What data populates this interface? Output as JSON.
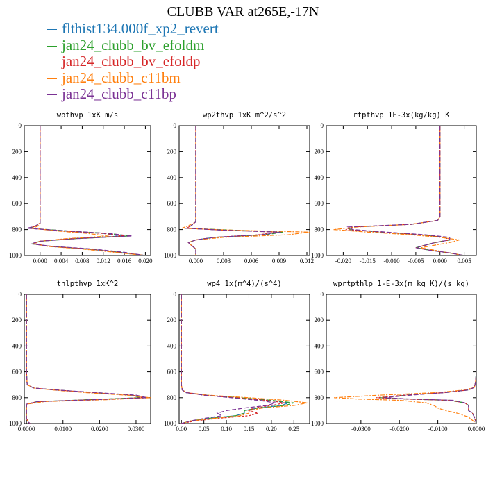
{
  "figure": {
    "title": "CLUBB VAR at265E,-17N"
  },
  "legend": [
    {
      "name": "flthist134.000f_xp2_revert",
      "color": "#1f77b4"
    },
    {
      "name": "jan24_clubb_bv_efoldm",
      "color": "#2ca02c"
    },
    {
      "name": "jan24_clubb_bv_efoldp",
      "color": "#d62728"
    },
    {
      "name": "jan24_clubb_c11bm",
      "color": "#ff7f0e"
    },
    {
      "name": "jan24_clubb_c11bp",
      "color": "#7b3294"
    }
  ],
  "chart_data": [
    {
      "type": "line",
      "title": "wpthvp  1xK m/s",
      "ylim": [
        1000,
        0
      ],
      "yticks": [
        "0",
        "200",
        "400",
        "600",
        "800",
        "1000"
      ],
      "xlim": [
        -0.003,
        0.021
      ],
      "xticks": [
        "0.000",
        "0.004",
        "0.008",
        "0.012",
        "0.016",
        "0.020"
      ],
      "y": [
        0,
        200,
        400,
        600,
        700,
        750,
        775,
        790,
        810,
        830,
        850,
        870,
        890,
        910,
        930,
        950,
        975,
        1000
      ],
      "series": [
        {
          "values": [
            0.0,
            0.0,
            0.0,
            0.0,
            0.0,
            0.0,
            -0.001,
            -0.002,
            0.004,
            0.012,
            0.0155,
            0.006,
            0.0,
            -0.0015,
            0.002,
            0.009,
            0.015,
            0.02
          ]
        },
        {
          "values": [
            0.0,
            0.0,
            0.0,
            0.0,
            0.0,
            0.0,
            -0.001,
            -0.002,
            0.005,
            0.013,
            0.017,
            0.007,
            0.0,
            -0.0015,
            0.002,
            0.009,
            0.015,
            0.02
          ]
        },
        {
          "values": [
            0.0,
            0.0,
            0.0,
            0.0,
            0.0,
            0.0,
            -0.001,
            -0.002,
            0.004,
            0.012,
            0.016,
            0.006,
            0.0,
            -0.0012,
            0.002,
            0.009,
            0.015,
            0.02
          ]
        },
        {
          "values": [
            0.0,
            0.0,
            0.0,
            0.0,
            0.0,
            0.0,
            -0.0005,
            -0.0015,
            0.003,
            0.009,
            0.013,
            0.005,
            0.0,
            -0.0012,
            0.0015,
            0.008,
            0.014,
            0.02
          ]
        },
        {
          "values": [
            0.0,
            0.0,
            0.0,
            0.0,
            0.0,
            0.0,
            -0.001,
            -0.0025,
            0.005,
            0.013,
            0.0175,
            0.007,
            0.0,
            -0.0018,
            0.0025,
            0.01,
            0.016,
            0.02
          ]
        }
      ]
    },
    {
      "type": "line",
      "title": "wp2thvp  1xK m^2/s^2",
      "ylim": [
        1000,
        0
      ],
      "yticks": [
        "0",
        "200",
        "400",
        "600",
        "800",
        "1000"
      ],
      "xlim": [
        -0.0018,
        0.0123
      ],
      "xticks": [
        "0.000",
        "0.003",
        "0.006",
        "0.009",
        "0.012"
      ],
      "y": [
        0,
        200,
        400,
        600,
        700,
        740,
        770,
        790,
        805,
        820,
        840,
        860,
        880,
        900,
        920,
        950,
        975,
        1000
      ],
      "series": [
        {
          "values": [
            0.0,
            0.0,
            0.0,
            0.0,
            0.0,
            0.0,
            -0.0005,
            -0.001,
            0.003,
            0.009,
            0.007,
            0.002,
            0.0,
            -0.0008,
            -0.0005,
            0.0,
            0.0,
            0.0
          ]
        },
        {
          "values": [
            0.0,
            0.0,
            0.0,
            0.0,
            0.0,
            0.0,
            -0.0005,
            -0.001,
            0.004,
            0.0095,
            0.0075,
            0.002,
            0.0,
            -0.0008,
            -0.0005,
            0.0,
            0.0,
            0.0
          ]
        },
        {
          "values": [
            0.0,
            0.0,
            0.0,
            0.0,
            0.0,
            0.0,
            -0.0005,
            -0.001,
            0.003,
            0.0088,
            0.0068,
            0.002,
            0.0,
            -0.0008,
            -0.0005,
            0.0,
            0.0,
            0.0
          ]
        },
        {
          "values": [
            0.0,
            0.0,
            0.0,
            0.0,
            0.0,
            0.0,
            -0.0008,
            -0.0015,
            0.004,
            0.0123,
            0.01,
            0.003,
            0.0,
            -0.0008,
            -0.0005,
            0.0,
            0.0,
            0.0
          ]
        },
        {
          "values": [
            0.0,
            0.0,
            0.0,
            0.0,
            0.0,
            0.0,
            -0.0005,
            -0.001,
            0.003,
            0.0092,
            0.0072,
            0.002,
            0.0,
            -0.0008,
            -0.0005,
            0.0,
            0.0,
            0.0
          ]
        }
      ]
    },
    {
      "type": "line",
      "title": "rtpthvp  1E-3x(kg/kg) K",
      "ylim": [
        1000,
        0
      ],
      "yticks": [
        "0",
        "200",
        "400",
        "600",
        "800",
        "1000"
      ],
      "xlim": [
        -0.0235,
        0.0075
      ],
      "xticks": [
        "-0.020",
        "-0.015",
        "-0.010",
        "-0.005",
        "0.000",
        "0.005"
      ],
      "y": [
        0,
        200,
        400,
        600,
        700,
        730,
        760,
        780,
        800,
        820,
        840,
        860,
        880,
        900,
        920,
        940,
        960,
        980,
        1000
      ],
      "series": [
        {
          "values": [
            0.0,
            0.0,
            0.0,
            0.0,
            0.0,
            -0.0005,
            -0.006,
            -0.018,
            -0.019,
            -0.012,
            -0.004,
            0.001,
            0.002,
            -0.001,
            -0.003,
            -0.005,
            -0.002,
            0.002,
            0.005
          ]
        },
        {
          "values": [
            0.0,
            0.0,
            0.0,
            0.0,
            0.0,
            -0.0005,
            -0.006,
            -0.018,
            -0.019,
            -0.012,
            -0.004,
            0.001,
            0.002,
            -0.001,
            -0.003,
            -0.005,
            -0.002,
            0.002,
            0.005
          ]
        },
        {
          "values": [
            0.0,
            0.0,
            0.0,
            0.0,
            0.0,
            -0.0005,
            -0.006,
            -0.018,
            -0.0195,
            -0.012,
            -0.004,
            0.001,
            0.002,
            -0.001,
            -0.003,
            -0.005,
            -0.002,
            0.002,
            0.005
          ]
        },
        {
          "values": [
            0.0,
            0.0,
            0.0,
            0.0,
            0.0,
            -0.0005,
            -0.006,
            -0.017,
            -0.022,
            -0.015,
            -0.006,
            0.0,
            0.004,
            0.002,
            -0.001,
            -0.004,
            -0.001,
            0.002,
            0.005
          ]
        },
        {
          "values": [
            0.0,
            0.0,
            0.0,
            0.0,
            0.0,
            -0.0005,
            -0.006,
            -0.019,
            -0.018,
            -0.011,
            -0.003,
            0.002,
            0.002,
            -0.001,
            -0.003,
            -0.005,
            -0.002,
            0.002,
            0.005
          ]
        }
      ]
    },
    {
      "type": "line",
      "title": "thlpthvp  1xK^2",
      "ylim": [
        1000,
        0
      ],
      "yticks": [
        "0",
        "200",
        "400",
        "600",
        "800",
        "1000"
      ],
      "xlim": [
        -0.0006,
        0.034
      ],
      "xticks": [
        "0.0000",
        "0.0100",
        "0.0200",
        "0.0300"
      ],
      "y": [
        0,
        200,
        400,
        600,
        700,
        725,
        740,
        760,
        780,
        800,
        815,
        830,
        850,
        880,
        920,
        960,
        990,
        1000
      ],
      "series": [
        {
          "values": [
            0.0,
            0.0,
            0.0,
            0.0,
            0.0002,
            0.002,
            0.008,
            0.018,
            0.029,
            0.032,
            0.018,
            0.003,
            0.0,
            0.0,
            0.0,
            0.0,
            0.0005,
            0.001
          ]
        },
        {
          "values": [
            0.0,
            0.0,
            0.0,
            0.0,
            0.0002,
            0.002,
            0.008,
            0.018,
            0.029,
            0.031,
            0.017,
            0.003,
            0.0,
            0.0,
            0.0,
            0.0,
            0.0005,
            0.001
          ]
        },
        {
          "values": [
            0.0,
            0.0,
            0.0,
            0.0,
            0.0002,
            0.002,
            0.008,
            0.018,
            0.029,
            0.032,
            0.018,
            0.003,
            0.0,
            0.0,
            0.0,
            0.0,
            0.0005,
            0.001
          ]
        },
        {
          "values": [
            0.0,
            0.0,
            0.0,
            0.0,
            0.0002,
            0.002,
            0.007,
            0.016,
            0.027,
            0.034,
            0.022,
            0.005,
            0.0,
            0.0,
            0.0,
            0.0,
            0.0005,
            0.001
          ]
        },
        {
          "values": [
            0.0,
            0.0,
            0.0,
            0.0,
            0.0002,
            0.002,
            0.008,
            0.019,
            0.03,
            0.033,
            0.019,
            0.003,
            0.0,
            0.0,
            0.0,
            0.0,
            0.0005,
            0.001
          ]
        }
      ]
    },
    {
      "type": "line",
      "title": "wp4  1x(m^4)/(s^4)",
      "ylim": [
        1000,
        0
      ],
      "yticks": [
        "0",
        "200",
        "400",
        "600",
        "800",
        "1000"
      ],
      "xlim": [
        -0.005,
        0.285
      ],
      "xticks": [
        "0.00",
        "0.05",
        "0.10",
        "0.15",
        "0.20",
        "0.25"
      ],
      "y": [
        0,
        200,
        400,
        600,
        700,
        740,
        760,
        780,
        800,
        820,
        840,
        860,
        880,
        900,
        920,
        940,
        960,
        980,
        1000
      ],
      "series": [
        {
          "values": [
            0.0,
            0.0,
            0.0,
            0.0,
            0.0,
            0.002,
            0.01,
            0.05,
            0.12,
            0.19,
            0.24,
            0.22,
            0.17,
            0.14,
            0.14,
            0.12,
            0.06,
            0.02,
            0.0
          ]
        },
        {
          "values": [
            0.0,
            0.0,
            0.0,
            0.0,
            0.0,
            0.002,
            0.01,
            0.05,
            0.13,
            0.2,
            0.25,
            0.23,
            0.17,
            0.14,
            0.14,
            0.12,
            0.06,
            0.02,
            0.0
          ]
        },
        {
          "values": [
            0.0,
            0.0,
            0.0,
            0.0,
            0.0,
            0.002,
            0.01,
            0.05,
            0.12,
            0.19,
            0.23,
            0.2,
            0.16,
            0.15,
            0.17,
            0.15,
            0.08,
            0.03,
            0.0
          ]
        },
        {
          "values": [
            0.0,
            0.0,
            0.0,
            0.0,
            0.0,
            0.002,
            0.012,
            0.06,
            0.15,
            0.23,
            0.28,
            0.25,
            0.18,
            0.15,
            0.15,
            0.13,
            0.07,
            0.02,
            0.0
          ]
        },
        {
          "values": [
            0.0,
            0.0,
            0.0,
            0.0,
            0.0,
            0.002,
            0.01,
            0.05,
            0.11,
            0.17,
            0.21,
            0.19,
            0.14,
            0.1,
            0.08,
            0.09,
            0.05,
            0.02,
            0.0
          ]
        }
      ]
    },
    {
      "type": "line",
      "title": "wprtpthlp  1-E-3x(m kg K)/(s kg)",
      "ylim": [
        1000,
        0
      ],
      "yticks": [
        "0",
        "200",
        "400",
        "600",
        "800",
        "1000"
      ],
      "xlim": [
        -0.039,
        0.0
      ],
      "xticks": [
        "-0.0300",
        "-0.0200",
        "-0.0100",
        "0.0000"
      ],
      "y": [
        0,
        200,
        400,
        600,
        680,
        720,
        740,
        760,
        780,
        800,
        810,
        820,
        840,
        860,
        880,
        900,
        920,
        950,
        1000
      ],
      "series": [
        {
          "values": [
            0.0,
            0.0,
            0.0,
            0.0,
            -0.0002,
            -0.0005,
            -0.002,
            -0.008,
            -0.018,
            -0.025,
            -0.018,
            -0.007,
            -0.003,
            -0.002,
            -0.002,
            -0.002,
            -0.001,
            -0.0005,
            0.0
          ]
        },
        {
          "values": [
            0.0,
            0.0,
            0.0,
            0.0,
            -0.0002,
            -0.0005,
            -0.002,
            -0.008,
            -0.018,
            -0.025,
            -0.018,
            -0.007,
            -0.003,
            -0.002,
            -0.002,
            -0.002,
            -0.001,
            -0.0005,
            0.0
          ]
        },
        {
          "values": [
            0.0,
            0.0,
            0.0,
            0.0,
            -0.0002,
            -0.0005,
            -0.002,
            -0.008,
            -0.019,
            -0.026,
            -0.019,
            -0.007,
            -0.003,
            -0.002,
            -0.002,
            -0.002,
            -0.001,
            -0.0005,
            0.0
          ]
        },
        {
          "values": [
            0.0,
            0.0,
            0.0,
            0.0,
            -0.0002,
            -0.0005,
            -0.003,
            -0.01,
            -0.025,
            -0.037,
            -0.031,
            -0.02,
            -0.013,
            -0.011,
            -0.01,
            -0.008,
            -0.005,
            -0.002,
            0.0
          ]
        },
        {
          "values": [
            0.0,
            0.0,
            0.0,
            0.0,
            -0.0002,
            -0.0005,
            -0.002,
            -0.008,
            -0.017,
            -0.024,
            -0.017,
            -0.006,
            -0.003,
            -0.002,
            -0.002,
            -0.002,
            -0.001,
            -0.0005,
            0.0
          ]
        }
      ]
    }
  ]
}
